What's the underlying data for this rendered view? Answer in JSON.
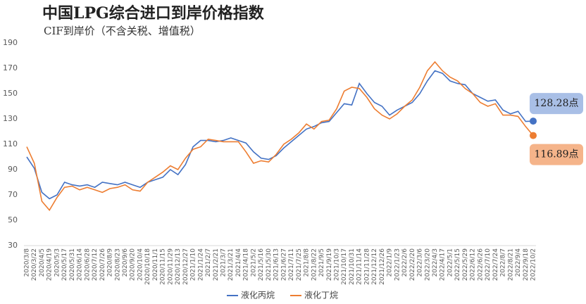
{
  "chart_data": {
    "type": "line",
    "title": "中国LPG综合进口到岸价格指数",
    "subtitle": "CIF到岸价（不含关税、增值税）",
    "categories": [
      "2020/3/8",
      "2020/3/22",
      "2020/4/5",
      "2020/4/19",
      "2020/5/3",
      "2020/5/17",
      "2020/5/31",
      "2020/6/14",
      "2020/6/28",
      "2020/7/12",
      "2020/7/26",
      "2020/8/9",
      "2020/8/23",
      "2020/9/6",
      "2020/9/20",
      "2020/10/4",
      "2020/10/18",
      "2020/11/1",
      "2020/11/15",
      "2020/11/29",
      "2020/12/13",
      "2020/12/27",
      "2021/1/10",
      "2021/1/24",
      "2021/2/7",
      "2021/2/21",
      "2021/3/7",
      "2021/3/21",
      "2021/4/4",
      "2021/4/18",
      "2021/5/2",
      "2021/5/16",
      "2021/5/30",
      "2021/6/13",
      "2021/6/27",
      "2021/7/11",
      "2021/7/25",
      "2021/8/8",
      "2021/8/22",
      "2021/9/5",
      "2021/9/19",
      "2021/10/3",
      "2021/10/17",
      "2021/10/31",
      "2021/11/14",
      "2021/11/28",
      "2021/12/12",
      "2021/12/26",
      "2022/1/9",
      "2022/1/23",
      "2022/2/6",
      "2022/2/20",
      "2022/3/6",
      "2022/3/20",
      "2022/4/3",
      "2022/4/17",
      "2022/5/1",
      "2022/5/15",
      "2022/5/29",
      "2022/6/12",
      "2022/6/26",
      "2022/7/10",
      "2022/7/24",
      "2022/8/7",
      "2022/8/21",
      "2022/9/4",
      "2022/9/18",
      "2022/10/2"
    ],
    "series": [
      {
        "name": "液化丙烷",
        "color": "#4472c4",
        "values": [
          100,
          91,
          72,
          67,
          70,
          80,
          78,
          77,
          78,
          76,
          80,
          79,
          78,
          80,
          78,
          76,
          80,
          82,
          84,
          90,
          86,
          94,
          108,
          113,
          113,
          112,
          113,
          115,
          113,
          111,
          104,
          99,
          98,
          101,
          107,
          112,
          117,
          122,
          124,
          127,
          128,
          135,
          142,
          141,
          158,
          150,
          143,
          140,
          133,
          137,
          140,
          143,
          150,
          160,
          168,
          166,
          160,
          158,
          157,
          150,
          147,
          144,
          145,
          137,
          134,
          136,
          128,
          128.28
        ],
        "value_labels": [
          null,
          null,
          null,
          null,
          null,
          null,
          null,
          null,
          null,
          null,
          null,
          null,
          null,
          null,
          null,
          null,
          null,
          null,
          null,
          null,
          null,
          null,
          null,
          null,
          null,
          null,
          null,
          null,
          null,
          null,
          null,
          null,
          null,
          null,
          null,
          null,
          null,
          null,
          null,
          null,
          null,
          null,
          null,
          null,
          null,
          null,
          null,
          null,
          null,
          null,
          null,
          null,
          null,
          null,
          null,
          null,
          null,
          null,
          null,
          null,
          null,
          null,
          null,
          null,
          null,
          null,
          null,
          "128.28点"
        ]
      },
      {
        "name": "液化丁烷",
        "color": "#ed7d31",
        "values": [
          108,
          95,
          65,
          58,
          68,
          76,
          77,
          74,
          76,
          74,
          72,
          75,
          76,
          78,
          74,
          73,
          80,
          84,
          88,
          93,
          90,
          99,
          106,
          108,
          114,
          113,
          112,
          112,
          112,
          104,
          95,
          97,
          96,
          102,
          110,
          114,
          119,
          126,
          122,
          128,
          129,
          138,
          152,
          155,
          154,
          147,
          138,
          133,
          130,
          134,
          140,
          145,
          155,
          168,
          175,
          168,
          163,
          160,
          154,
          150,
          143,
          140,
          142,
          133,
          133,
          132,
          124,
          116.89
        ],
        "value_labels": [
          null,
          null,
          null,
          null,
          null,
          null,
          null,
          null,
          null,
          null,
          null,
          null,
          null,
          null,
          null,
          null,
          null,
          null,
          null,
          null,
          null,
          null,
          null,
          null,
          null,
          null,
          null,
          null,
          null,
          null,
          null,
          null,
          null,
          null,
          null,
          null,
          null,
          null,
          null,
          null,
          null,
          null,
          null,
          null,
          null,
          null,
          null,
          null,
          null,
          null,
          null,
          null,
          null,
          null,
          null,
          null,
          null,
          null,
          null,
          null,
          null,
          null,
          null,
          null,
          null,
          null,
          null,
          "116.89点"
        ]
      }
    ],
    "ylim": [
      30,
      190
    ],
    "yticks": [
      30,
      50,
      70,
      90,
      110,
      130,
      150,
      170,
      190
    ],
    "grid": false
  }
}
